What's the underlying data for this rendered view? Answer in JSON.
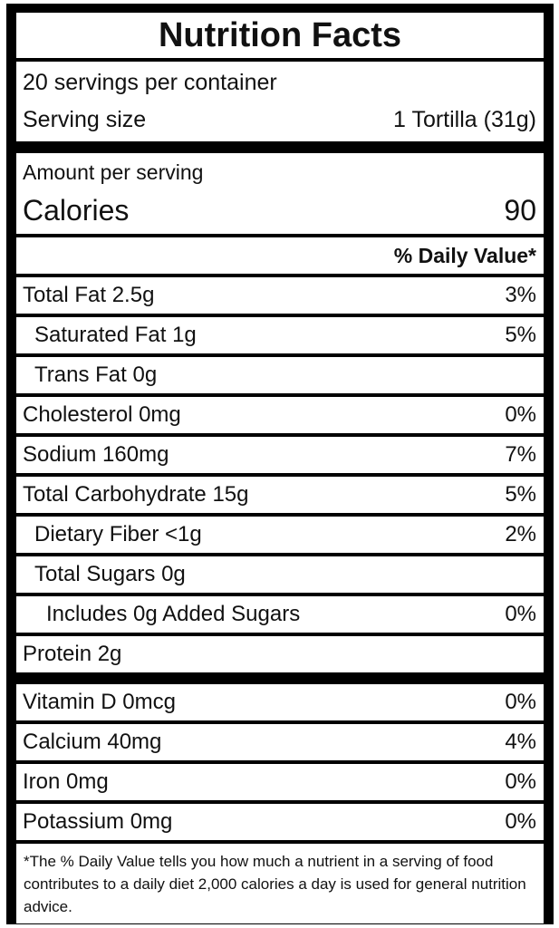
{
  "label": {
    "title": "Nutrition Facts",
    "servings_per_container": "20 servings per container",
    "serving_size_label": "Serving size",
    "serving_size_value": "1 Tortilla (31g)",
    "amount_per_serving": "Amount per serving",
    "calories_label": "Calories",
    "calories_value": "90",
    "daily_value_header": "% Daily Value*",
    "nutrients": [
      {
        "name": "Total Fat 2.5g",
        "dv": "3%",
        "indent": 0
      },
      {
        "name": "Saturated Fat 1g",
        "dv": "5%",
        "indent": 1
      },
      {
        "name": "Trans Fat 0g",
        "dv": "",
        "indent": 1
      },
      {
        "name": "Cholesterol 0mg",
        "dv": "0%",
        "indent": 0
      },
      {
        "name": "Sodium 160mg",
        "dv": "7%",
        "indent": 0
      },
      {
        "name": "Total Carbohydrate 15g",
        "dv": "5%",
        "indent": 0
      },
      {
        "name": "Dietary Fiber <1g",
        "dv": "2%",
        "indent": 1
      },
      {
        "name": "Total Sugars 0g",
        "dv": "",
        "indent": 1
      },
      {
        "name": "Includes 0g Added Sugars",
        "dv": "0%",
        "indent": 2
      },
      {
        "name": "Protein 2g",
        "dv": "",
        "indent": 0
      }
    ],
    "vitamins": [
      {
        "name": "Vitamin D 0mcg",
        "dv": "0%"
      },
      {
        "name": "Calcium 40mg",
        "dv": "4%"
      },
      {
        "name": "Iron 0mg",
        "dv": "0%"
      },
      {
        "name": "Potassium 0mg",
        "dv": "0%"
      }
    ],
    "footnote": "*The % Daily Value tells you how much a nutrient in a serving of food contributes to a daily diet 2,000 calories a day is used for general nutrition advice."
  },
  "colors": {
    "frame": "#000000",
    "box_background": "#ffffff",
    "text": "#111111"
  }
}
